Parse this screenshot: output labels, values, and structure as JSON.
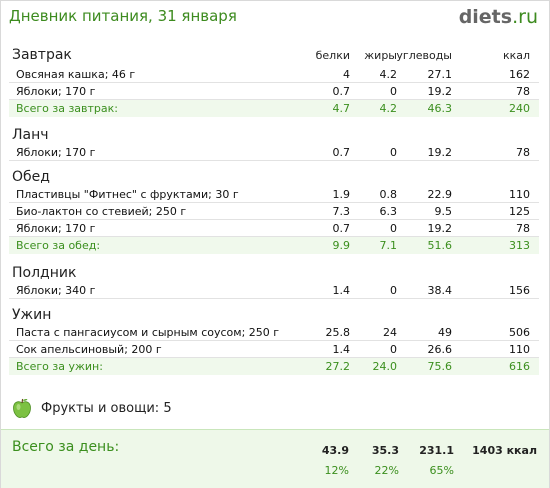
{
  "header": {
    "title": "Дневник питания, 31 января",
    "logo_main": "diets",
    "logo_tld": ".ru"
  },
  "columns": [
    "белки",
    "жиры",
    "углеводы",
    "ккал"
  ],
  "meals": [
    {
      "name": "Завтрак",
      "items": [
        {
          "name": "Овсяная кашка; 46 г",
          "protein": "4",
          "fat": "4.2",
          "carbs": "27.1",
          "kcal": "162"
        },
        {
          "name": "Яблоки; 170 г",
          "protein": "0.7",
          "fat": "0",
          "carbs": "19.2",
          "kcal": "78"
        }
      ],
      "total": {
        "label": "Всего за завтрак:",
        "protein": "4.7",
        "fat": "4.2",
        "carbs": "46.3",
        "kcal": "240"
      }
    },
    {
      "name": "Ланч",
      "items": [
        {
          "name": "Яблоки; 170 г",
          "protein": "0.7",
          "fat": "0",
          "carbs": "19.2",
          "kcal": "78"
        }
      ]
    },
    {
      "name": "Обед",
      "items": [
        {
          "name": "Пластивцы \"Фитнес\" с фруктами; 30 г",
          "protein": "1.9",
          "fat": "0.8",
          "carbs": "22.9",
          "kcal": "110"
        },
        {
          "name": "Био-лактон со стевией; 250 г",
          "protein": "7.3",
          "fat": "6.3",
          "carbs": "9.5",
          "kcal": "125"
        },
        {
          "name": "Яблоки; 170 г",
          "protein": "0.7",
          "fat": "0",
          "carbs": "19.2",
          "kcal": "78"
        }
      ],
      "total": {
        "label": "Всего за обед:",
        "protein": "9.9",
        "fat": "7.1",
        "carbs": "51.6",
        "kcal": "313"
      }
    },
    {
      "name": "Полдник",
      "items": [
        {
          "name": "Яблоки; 340 г",
          "protein": "1.4",
          "fat": "0",
          "carbs": "38.4",
          "kcal": "156"
        }
      ]
    },
    {
      "name": "Ужин",
      "items": [
        {
          "name": "Паста с пангасиусом и сырным соусом; 250 г",
          "protein": "25.8",
          "fat": "24",
          "carbs": "49",
          "kcal": "506"
        },
        {
          "name": "Сок апельсиновый; 200 г",
          "protein": "1.4",
          "fat": "0",
          "carbs": "26.6",
          "kcal": "110"
        }
      ],
      "total": {
        "label": "Всего за ужин:",
        "protein": "27.2",
        "fat": "24.0",
        "carbs": "75.6",
        "kcal": "616"
      }
    }
  ],
  "fruits": {
    "label": "Фрукты и овощи: 5",
    "icon": "green-apple-icon",
    "apple_color": "#7cc142"
  },
  "day_total": {
    "label": "Всего за день:",
    "protein": "43.9",
    "fat": "35.3",
    "carbs": "231.1",
    "kcal": "1403 ккал",
    "protein_pct": "12%",
    "fat_pct": "22%",
    "carbs_pct": "65%"
  },
  "colors": {
    "accent": "#3b8f1e",
    "total_bg": "#f0f9ec"
  }
}
